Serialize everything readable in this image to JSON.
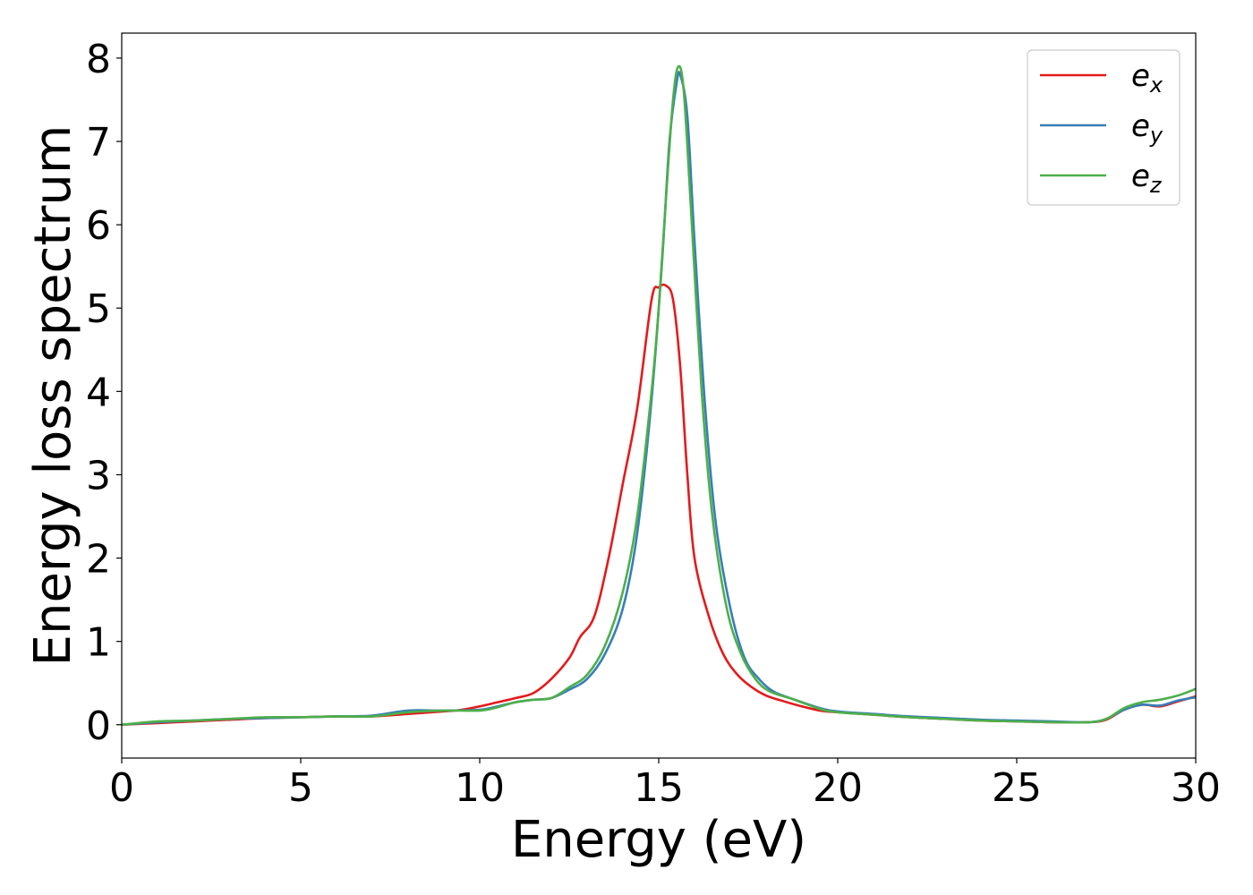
{
  "chart_data": {
    "type": "line",
    "xlabel": "Energy (eV)",
    "ylabel": "Energy loss spectrum",
    "xlim": [
      0,
      30
    ],
    "ylim": [
      -0.4,
      8.3
    ],
    "xticks": [
      0,
      5,
      10,
      15,
      20,
      25,
      30
    ],
    "yticks": [
      0,
      1,
      2,
      3,
      4,
      5,
      6,
      7,
      8
    ],
    "grid": false,
    "legend_position": "top-right",
    "series": [
      {
        "name": "e_x",
        "label_base": "e",
        "label_sub": "x",
        "color": "#e41a1c",
        "x": [
          0,
          1,
          2,
          3,
          4,
          5,
          6,
          7,
          8,
          9,
          9.5,
          10,
          10.5,
          11,
          11.5,
          12,
          12.5,
          12.8,
          13.2,
          13.6,
          14.0,
          14.4,
          14.8,
          15.0,
          15.2,
          15.4,
          15.6,
          15.8,
          16.0,
          16.4,
          16.8,
          17.2,
          17.6,
          18.0,
          18.5,
          19,
          19.5,
          20,
          21,
          22,
          23,
          24,
          25,
          26,
          27,
          27.5,
          28,
          28.5,
          29,
          29.5,
          30
        ],
        "y": [
          0.0,
          0.02,
          0.04,
          0.06,
          0.08,
          0.09,
          0.1,
          0.1,
          0.13,
          0.16,
          0.18,
          0.22,
          0.27,
          0.32,
          0.38,
          0.55,
          0.8,
          1.05,
          1.3,
          2.0,
          2.9,
          3.8,
          5.1,
          5.25,
          5.27,
          5.1,
          4.3,
          3.0,
          2.0,
          1.3,
          0.85,
          0.6,
          0.45,
          0.35,
          0.28,
          0.22,
          0.17,
          0.15,
          0.12,
          0.09,
          0.07,
          0.05,
          0.04,
          0.03,
          0.03,
          0.06,
          0.18,
          0.24,
          0.22,
          0.28,
          0.34
        ]
      },
      {
        "name": "e_y",
        "label_base": "e",
        "label_sub": "y",
        "color": "#377eb8",
        "x": [
          0,
          1,
          2,
          3,
          4,
          5,
          6,
          7,
          8,
          9,
          10,
          10.5,
          11,
          11.5,
          12,
          12.5,
          13,
          13.5,
          14.0,
          14.4,
          14.8,
          15.1,
          15.3,
          15.5,
          15.6,
          15.8,
          16.0,
          16.3,
          16.6,
          17.0,
          17.4,
          17.8,
          18.2,
          18.8,
          19.5,
          20,
          21,
          22,
          23,
          24,
          25,
          26,
          27,
          27.5,
          28,
          28.5,
          29,
          29.5,
          30
        ],
        "y": [
          0.0,
          0.03,
          0.05,
          0.07,
          0.08,
          0.09,
          0.1,
          0.11,
          0.17,
          0.17,
          0.18,
          0.22,
          0.27,
          0.3,
          0.32,
          0.42,
          0.55,
          0.85,
          1.4,
          2.3,
          3.9,
          5.6,
          7.0,
          7.7,
          7.8,
          7.3,
          5.8,
          3.8,
          2.4,
          1.4,
          0.8,
          0.55,
          0.4,
          0.3,
          0.2,
          0.16,
          0.13,
          0.1,
          0.08,
          0.06,
          0.05,
          0.04,
          0.03,
          0.07,
          0.18,
          0.24,
          0.23,
          0.29,
          0.33
        ]
      },
      {
        "name": "e_z",
        "label_base": "e",
        "label_sub": "z",
        "color": "#4daf4a",
        "x": [
          0,
          1,
          2,
          3,
          4,
          5,
          6,
          7,
          8,
          9,
          10,
          10.5,
          11,
          11.5,
          12,
          12.5,
          13,
          13.5,
          14.0,
          14.4,
          14.8,
          15.0,
          15.2,
          15.4,
          15.55,
          15.7,
          15.9,
          16.2,
          16.5,
          16.9,
          17.3,
          17.7,
          18.1,
          18.8,
          19.5,
          20,
          21,
          22,
          23,
          24,
          25,
          26,
          27,
          27.5,
          28,
          28.5,
          29,
          29.5,
          30
        ],
        "y": [
          0.0,
          0.04,
          0.05,
          0.07,
          0.09,
          0.09,
          0.1,
          0.1,
          0.15,
          0.17,
          0.17,
          0.21,
          0.27,
          0.3,
          0.32,
          0.45,
          0.6,
          0.95,
          1.6,
          2.5,
          4.0,
          5.0,
          6.3,
          7.5,
          7.9,
          7.6,
          6.2,
          4.0,
          2.5,
          1.4,
          0.85,
          0.55,
          0.4,
          0.3,
          0.19,
          0.15,
          0.12,
          0.09,
          0.07,
          0.05,
          0.04,
          0.03,
          0.03,
          0.07,
          0.2,
          0.27,
          0.3,
          0.35,
          0.43
        ]
      }
    ]
  }
}
